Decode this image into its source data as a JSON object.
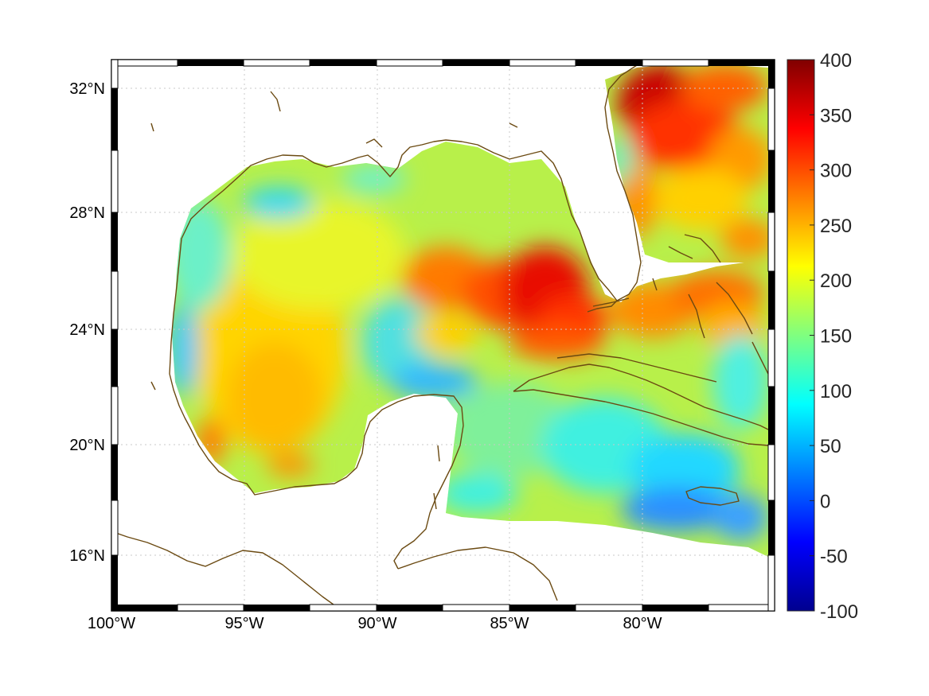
{
  "map": {
    "projection": "lat-lon",
    "lon_range": [
      -100,
      -75
    ],
    "lat_range": [
      14.3,
      33
    ],
    "lat_ticks": [
      {
        "value": 32,
        "label": "32°N"
      },
      {
        "value": 28,
        "label": "28°N"
      },
      {
        "value": 24,
        "label": "24°N"
      },
      {
        "value": 20,
        "label": "20°N"
      },
      {
        "value": 16,
        "label": "16°N"
      }
    ],
    "lon_ticks": [
      {
        "value": -100,
        "label": "100°W"
      },
      {
        "value": -95,
        "label": "95°W"
      },
      {
        "value": -90,
        "label": "90°W"
      },
      {
        "value": -85,
        "label": "85°W"
      },
      {
        "value": -80,
        "label": "80°W"
      }
    ],
    "grid": true,
    "coastline_color": "#6b4a12",
    "frame_style": "black-white checkered border"
  },
  "colorbar": {
    "colormap": "jet",
    "range": [
      -100,
      400
    ],
    "ticks": [
      "400",
      "350",
      "300",
      "250",
      "200",
      "150",
      "100",
      "50",
      "0",
      "-50",
      "-100"
    ],
    "placement": "right"
  },
  "field": {
    "description_values": "gridded scalar field over Gulf of Mexico and Caribbean; high values (~300-400) in eastern Gulf loop current and Gulf Stream off Georgia/Carolinas; low values (~50-100) in western Caribbean south of Cuba"
  }
}
